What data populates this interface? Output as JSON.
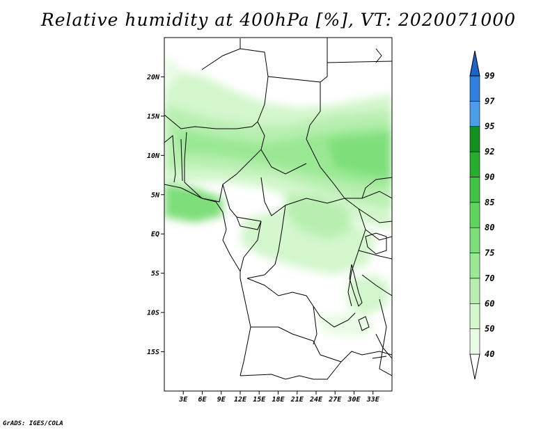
{
  "title": "Relative humidity at 400hPa [%], VT: 2020071000",
  "credit": "GrADS: IGES/COLA",
  "map": {
    "lon_range": [
      0,
      36
    ],
    "lat_range": [
      -20,
      25
    ],
    "lat_labels": [
      "20N",
      "15N",
      "10N",
      "5N",
      "EQ",
      "5S",
      "10S",
      "15S"
    ],
    "lat_values": [
      20,
      15,
      10,
      5,
      0,
      -5,
      -10,
      -15
    ],
    "lon_labels": [
      "3E",
      "6E",
      "9E",
      "12E",
      "15E",
      "18E",
      "21E",
      "24E",
      "27E",
      "30E",
      "33E"
    ],
    "lon_values": [
      3,
      6,
      9,
      12,
      15,
      18,
      21,
      24,
      27,
      30,
      33
    ]
  },
  "colorbar": {
    "levels": [
      "40",
      "50",
      "60",
      "70",
      "75",
      "80",
      "85",
      "90",
      "92",
      "95",
      "97",
      "99"
    ],
    "colors": [
      "#e9fbe5",
      "#d3f6cc",
      "#b8efb0",
      "#9ae894",
      "#7ede79",
      "#5ed35e",
      "#3fc444",
      "#25ad30",
      "#139120",
      "#4a9ee8",
      "#2f80dc",
      "#1e63c8"
    ]
  }
}
